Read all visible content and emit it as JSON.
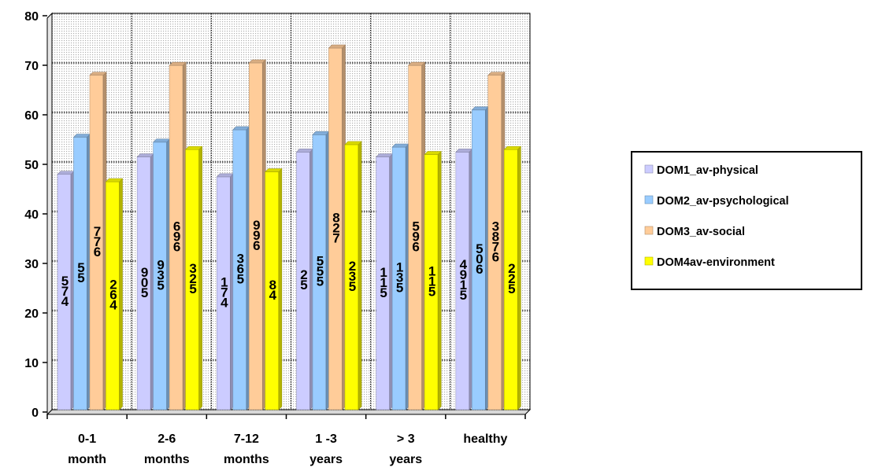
{
  "chart_data": {
    "type": "bar",
    "categories": [
      [
        "0-1",
        "month"
      ],
      [
        "2-6",
        "months"
      ],
      [
        "7-12",
        "months"
      ],
      [
        "1 -3",
        "years"
      ],
      [
        "> 3",
        "years"
      ],
      [
        "healthy"
      ]
    ],
    "ylim": [
      0,
      80
    ],
    "yticks": [
      0,
      10,
      20,
      30,
      40,
      50,
      60,
      70,
      80
    ],
    "grid": true,
    "legend_position": "right",
    "series": [
      {
        "name": "DOM1_av-physical",
        "color": "#ccccff",
        "values": [
          47.5,
          51,
          47,
          52,
          51,
          52
        ],
        "labels": [
          [
            "5",
            "7",
            "4"
          ],
          [
            "9",
            "0",
            "5"
          ],
          [
            "1",
            "7",
            "4"
          ],
          [
            "2",
            "5"
          ],
          [
            "1",
            "1",
            "5"
          ],
          [
            "4",
            "9",
            "1",
            "5"
          ]
        ]
      },
      {
        "name": "DOM2_av-psychological",
        "color": "#99ccff",
        "values": [
          55,
          54,
          56.5,
          55.5,
          53,
          60.5
        ],
        "labels": [
          [
            "5",
            "5"
          ],
          [
            "9",
            "3",
            "5"
          ],
          [
            "3",
            "6",
            "5"
          ],
          [
            "5",
            "5",
            "5"
          ],
          [
            "1",
            "3",
            "5"
          ],
          [
            "5",
            "0",
            "6"
          ]
        ]
      },
      {
        "name": "DOM3_av-social",
        "color": "#ffcc99",
        "values": [
          67.5,
          69.5,
          70,
          73,
          69.5,
          67.5
        ],
        "labels": [
          [
            "7",
            "7",
            "6"
          ],
          [
            "6",
            "9",
            "6"
          ],
          [
            "9",
            "9",
            "6"
          ],
          [
            "8",
            "2",
            "7"
          ],
          [
            "5",
            "9",
            "6"
          ],
          [
            "3",
            "8",
            "7",
            "6"
          ]
        ]
      },
      {
        "name": "DOM4av-environment",
        "color": "#ffff00",
        "values": [
          46,
          52.5,
          48,
          53.5,
          51.5,
          52.5
        ],
        "labels": [
          [
            "2",
            "6",
            "4"
          ],
          [
            "3",
            "2",
            "5"
          ],
          [
            "8",
            "4"
          ],
          [
            "2",
            "3",
            "5"
          ],
          [
            "1",
            "1",
            "5"
          ],
          [
            "2",
            "2",
            "5"
          ]
        ]
      }
    ]
  }
}
